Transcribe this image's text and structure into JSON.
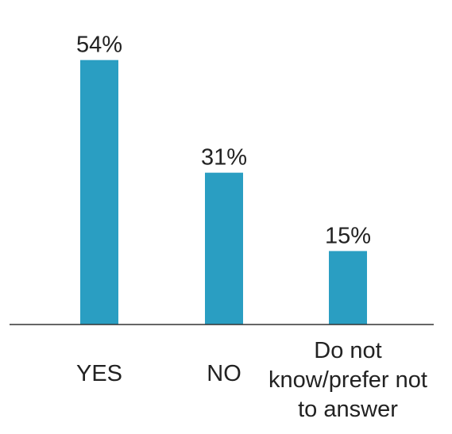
{
  "chart_data": {
    "type": "bar",
    "title": "",
    "xlabel": "",
    "ylabel": "",
    "categories": [
      "YES",
      "NO",
      "Do not know/prefer not to answer"
    ],
    "category_label_lines": [
      [
        "YES"
      ],
      [
        "NO"
      ],
      [
        "Do not",
        "know/prefer not",
        "to answer"
      ]
    ],
    "values": [
      54,
      31,
      15
    ],
    "value_labels": [
      "54%",
      "31%",
      "15%"
    ],
    "unit": "%",
    "ylim": [
      0,
      58
    ],
    "grid": false,
    "legend": "none",
    "bar_color": "#2a9ec2",
    "baseline_color": "#333333"
  }
}
